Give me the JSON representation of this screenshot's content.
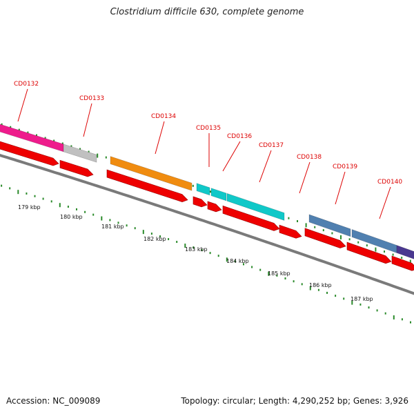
{
  "title": "Clostridium difficile 630, complete genome",
  "footer": {
    "accession": "Accession: NC_009089",
    "topology": "Topology: circular; Length: 4,290,252 bp; Genes: 3,926"
  },
  "colors": {
    "cds": "#ee0000",
    "backbone": "#7a7a7a",
    "tick": "#2a8a2a",
    "label": "#dd0000"
  },
  "genes": [
    {
      "name": "CD0132",
      "color": "#ee1c8c"
    },
    {
      "name": "CD0133",
      "color": "#c0c0c0"
    },
    {
      "name": "CD0134",
      "color": "#f08c10"
    },
    {
      "name": "CD0135",
      "color": "#10c8c8"
    },
    {
      "name": "CD0136",
      "color": "#10c8c8"
    },
    {
      "name": "CD0137",
      "color": "#10c8c8"
    },
    {
      "name": "CD0138",
      "color": "#5080b0"
    },
    {
      "name": "CD0139",
      "color": "#5080b0"
    },
    {
      "name": "CD0140",
      "color": "#4a3890"
    }
  ],
  "kbp_labels": [
    "179 kbp",
    "180 kbp",
    "181 kbp",
    "182 kbp",
    "183 kbp",
    "184 kbp",
    "185 kbp",
    "186 kbp",
    "187 kbp"
  ]
}
